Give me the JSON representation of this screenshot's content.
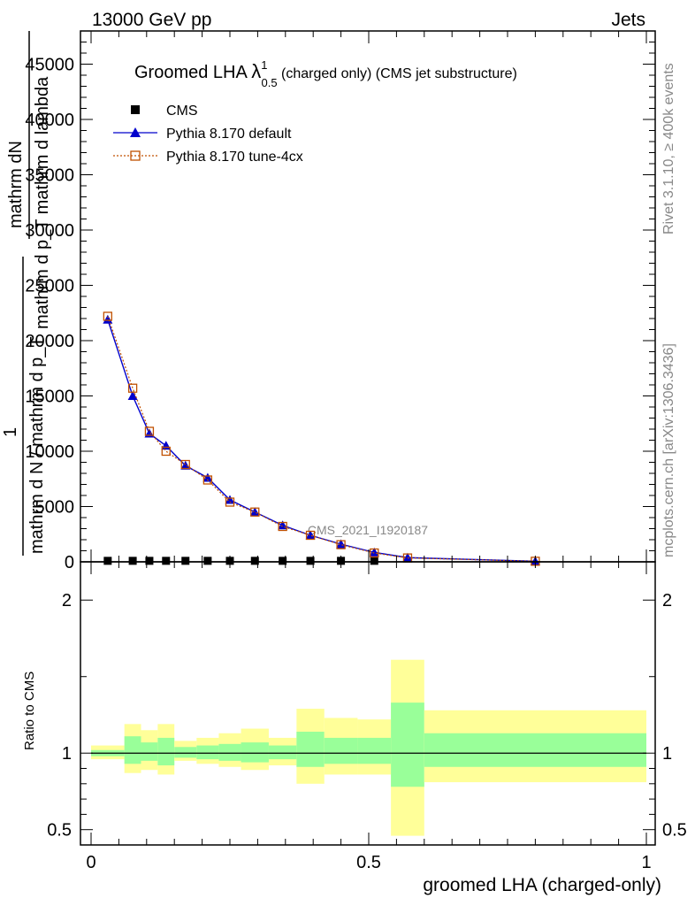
{
  "header": {
    "energy_label": "13000 GeV pp",
    "category_label": "Jets"
  },
  "side_labels": {
    "rivet": "Rivet 3.1.10, ≥ 400k events",
    "mcplots": "mcplots.cern.ch [arXiv:1306.3436]"
  },
  "chart_data": [
    {
      "type": "line",
      "title_main": "Groomed LHA ",
      "title_symbol": "λ",
      "title_sup": "1",
      "title_sub": "0.5",
      "title_suffix": " (charged only) (CMS jet substructure)",
      "ylabel_numerator": "mathrm dN",
      "ylabel_denominator": "mathrm d p_T mathrm d lambda",
      "ylabel_numerator2": "1",
      "ylabel_denominator2": "mathrm d N / mathrm d p_T",
      "watermark": "CMS_2021_I1920187",
      "xlim": [
        0,
        1
      ],
      "ylim": [
        0,
        48000
      ],
      "yticks": [
        0,
        5000,
        10000,
        15000,
        20000,
        25000,
        30000,
        35000,
        40000,
        45000
      ],
      "ytick_labels": [
        "0",
        "5000",
        "10000",
        "15000",
        "20000",
        "25000",
        "30000",
        "35000",
        "40000",
        "45000"
      ],
      "legend_position": "top-left",
      "series": [
        {
          "name": "CMS",
          "color": "#000000",
          "marker": "filled-square",
          "x": [
            0.03,
            0.075,
            0.105,
            0.135,
            0.17,
            0.21,
            0.25,
            0.295,
            0.345,
            0.395,
            0.45,
            0.51
          ],
          "values": [
            90,
            90,
            90,
            90,
            90,
            90,
            90,
            90,
            90,
            90,
            90,
            90
          ]
        },
        {
          "name": "Pythia 8.170 default",
          "color": "#0000cc",
          "marker": "filled-triangle",
          "x": [
            0.03,
            0.075,
            0.105,
            0.135,
            0.17,
            0.21,
            0.25,
            0.295,
            0.345,
            0.395,
            0.45,
            0.51,
            0.57,
            0.8
          ],
          "values": [
            21900,
            15000,
            11600,
            10500,
            8700,
            7600,
            5600,
            4500,
            3300,
            2400,
            1600,
            850,
            380,
            50
          ]
        },
        {
          "name": "Pythia 8.170 tune-4cx",
          "color": "#c05000",
          "marker": "open-square",
          "x": [
            0.03,
            0.075,
            0.105,
            0.135,
            0.17,
            0.21,
            0.25,
            0.295,
            0.345,
            0.395,
            0.45,
            0.51,
            0.57,
            0.8
          ],
          "values": [
            22200,
            15700,
            11800,
            10000,
            8800,
            7400,
            5400,
            4500,
            3200,
            2400,
            1550,
            800,
            350,
            50
          ]
        }
      ]
    },
    {
      "type": "area",
      "ylabel": "Ratio to CMS",
      "xlabel": "groomed LHA (charged-only)",
      "xlim": [
        0,
        1
      ],
      "ylim": [
        0.4,
        2.25
      ],
      "xticks": [
        0,
        0.5,
        1
      ],
      "xtick_labels": [
        "0",
        "0.5",
        "1"
      ],
      "yticks": [
        0.5,
        1,
        2
      ],
      "ytick_labels": [
        "0.5",
        "1",
        "2"
      ],
      "reference_line": 1,
      "band_colors": {
        "inner": "#99ff99",
        "outer": "#ffff99"
      },
      "bins": [
        {
          "lo": 0.0,
          "hi": 0.06,
          "inner": [
            0.98,
            1.02
          ],
          "outer": [
            0.96,
            1.05
          ]
        },
        {
          "lo": 0.06,
          "hi": 0.09,
          "inner": [
            0.93,
            1.11
          ],
          "outer": [
            0.87,
            1.19
          ]
        },
        {
          "lo": 0.09,
          "hi": 0.12,
          "inner": [
            0.95,
            1.07
          ],
          "outer": [
            0.89,
            1.15
          ]
        },
        {
          "lo": 0.12,
          "hi": 0.15,
          "inner": [
            0.92,
            1.1
          ],
          "outer": [
            0.86,
            1.19
          ]
        },
        {
          "lo": 0.15,
          "hi": 0.19,
          "inner": [
            0.97,
            1.04
          ],
          "outer": [
            0.95,
            1.08
          ]
        },
        {
          "lo": 0.19,
          "hi": 0.23,
          "inner": [
            0.96,
            1.05
          ],
          "outer": [
            0.93,
            1.1
          ]
        },
        {
          "lo": 0.23,
          "hi": 0.27,
          "inner": [
            0.95,
            1.06
          ],
          "outer": [
            0.91,
            1.13
          ]
        },
        {
          "lo": 0.27,
          "hi": 0.32,
          "inner": [
            0.94,
            1.07
          ],
          "outer": [
            0.89,
            1.16
          ]
        },
        {
          "lo": 0.32,
          "hi": 0.37,
          "inner": [
            0.96,
            1.05
          ],
          "outer": [
            0.92,
            1.1
          ]
        },
        {
          "lo": 0.37,
          "hi": 0.42,
          "inner": [
            0.91,
            1.14
          ],
          "outer": [
            0.8,
            1.29
          ]
        },
        {
          "lo": 0.42,
          "hi": 0.48,
          "inner": [
            0.93,
            1.1
          ],
          "outer": [
            0.86,
            1.23
          ]
        },
        {
          "lo": 0.48,
          "hi": 0.54,
          "inner": [
            0.93,
            1.1
          ],
          "outer": [
            0.86,
            1.22
          ]
        },
        {
          "lo": 0.54,
          "hi": 0.6,
          "inner": [
            0.78,
            1.33
          ],
          "outer": [
            0.46,
            1.61
          ]
        },
        {
          "lo": 0.6,
          "hi": 1.0,
          "inner": [
            0.91,
            1.13
          ],
          "outer": [
            0.81,
            1.28
          ]
        }
      ]
    }
  ]
}
